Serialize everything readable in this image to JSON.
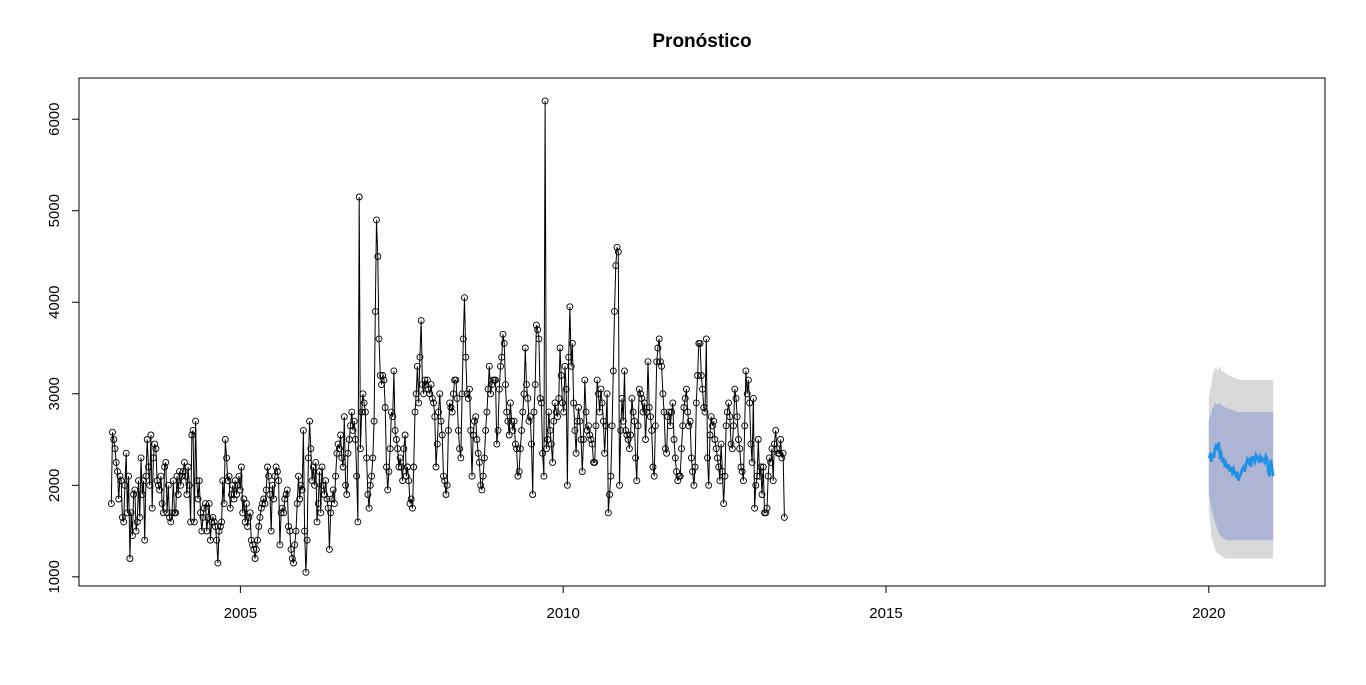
{
  "chart_data": {
    "type": "line",
    "title": "Pronóstico",
    "xlabel": "",
    "ylabel": "",
    "xlim": [
      2002.5,
      2021.8
    ],
    "ylim": [
      900,
      6450
    ],
    "x_ticks": [
      2005,
      2010,
      2015,
      2020
    ],
    "y_ticks": [
      1000,
      2000,
      3000,
      4000,
      5000,
      6000
    ],
    "grid": false,
    "legend": "none",
    "colors": {
      "observed": "#000000",
      "forecast": "#1E90E6",
      "interval_95": "#D9D9D9",
      "interval_80": "#AEB4D4"
    },
    "observed": {
      "start": 2003.0,
      "step": 0.0192,
      "values": [
        1800,
        2580,
        2500,
        2400,
        2250,
        2150,
        1850,
        2100,
        2050,
        1650,
        1600,
        2000,
        2350,
        1700,
        2100,
        1200,
        1700,
        1450,
        1900,
        1950,
        1500,
        1600,
        2050,
        1650,
        2300,
        1900,
        2050,
        1400,
        2100,
        2500,
        2200,
        2000,
        2550,
        1750,
        2300,
        2450,
        2400,
        2050,
        2000,
        1950,
        2100,
        1800,
        1700,
        2200,
        2250,
        1700,
        2000,
        1650,
        1600,
        1700,
        2050,
        1700,
        1700,
        2100,
        1900,
        2150,
        2000,
        2100,
        2150,
        2250,
        2100,
        1900,
        2200,
        2000,
        1600,
        2550,
        2600,
        1600,
        2700,
        2050,
        1850,
        2050,
        1700,
        1500,
        1650,
        1750,
        1800,
        1500,
        1650,
        1800,
        1400,
        1600,
        1650,
        1600,
        1550,
        1400,
        1150,
        1500,
        1550,
        1600,
        2050,
        1800,
        2500,
        2300,
        2050,
        2100,
        1750,
        1900,
        2000,
        1850,
        2050,
        1900,
        2000,
        2100,
        1950,
        2200,
        1700,
        1850,
        1600,
        1800,
        1550,
        1650,
        1700,
        1400,
        1350,
        1300,
        1200,
        1300,
        1400,
        1550,
        1650,
        1750,
        1800,
        1850,
        1800,
        1950,
        2200,
        2100,
        1900,
        1500,
        2000,
        1850,
        2100,
        2200,
        2150,
        2050,
        1350,
        1700,
        1750,
        1700,
        1850,
        1900,
        1950,
        1550,
        1500,
        1300,
        1200,
        1150,
        1350,
        1500,
        1800,
        2100,
        1850,
        2000,
        1950,
        2600,
        1500,
        1050,
        1400,
        2300,
        2700,
        2400,
        2050,
        2200,
        2000,
        2250,
        1600,
        1800,
        2150,
        1700,
        2200,
        2000,
        1900,
        2050,
        1850,
        1750,
        1300,
        1700,
        1850,
        1950,
        1800,
        2100,
        2350,
        2450,
        2400,
        2550,
        2300,
        2200,
        2750,
        2000,
        1900,
        2350,
        2500,
        2650,
        2800,
        2600,
        2700,
        2500,
        2100,
        1600,
        5150,
        2400,
        2800,
        3000,
        2900,
        2800,
        2300,
        1900,
        1750,
        2000,
        2100,
        2300,
        2700,
        3900,
        4900,
        4500,
        3600,
        3200,
        3100,
        3200,
        3150,
        2850,
        2200,
        1950,
        2150,
        2400,
        2800,
        2750,
        3250,
        2600,
        2500,
        2400,
        2200,
        2300,
        2200,
        2050,
        2400,
        2550,
        2100,
        2200,
        2050,
        1800,
        1850,
        1750,
        2200,
        2800,
        3000,
        3300,
        2900,
        3400,
        3800,
        3100,
        3000,
        3150,
        3100,
        3150,
        3050,
        3000,
        3100,
        2950,
        2900,
        2750,
        2200,
        2450,
        2800,
        3000,
        2700,
        2550,
        2100,
        2050,
        1900,
        2000,
        2600,
        2900,
        2850,
        2800,
        3000,
        3150,
        3150,
        2950,
        2600,
        2400,
        2300,
        3000,
        3600,
        4050,
        3400,
        3000,
        2950,
        3050,
        2600,
        2100,
        2550,
        2700,
        2750,
        2500,
        2350,
        2250,
        2000,
        1950,
        2100,
        2300,
        2600,
        2800,
        3050,
        3300,
        3000,
        3100,
        3150,
        3150,
        3150,
        2450,
        2600,
        3050,
        3300,
        3400,
        3650,
        3550,
        3100,
        2800,
        2700,
        2550,
        2900,
        2700,
        2600,
        2700,
        2450,
        2400,
        2100,
        2150,
        2400,
        2600,
        2800,
        3000,
        3500,
        3100,
        2950,
        2700,
        2750,
        2450,
        1900,
        2800,
        3100,
        3750,
        3700,
        3600,
        2950,
        2900,
        2350,
        2100,
        6200,
        2400,
        2500,
        2800,
        2600,
        2450,
        2250,
        2700,
        2900,
        2800,
        2750,
        2950,
        3500,
        3200,
        2900,
        2800,
        3300,
        3050,
        2000,
        3400,
        3950,
        3300,
        3550,
        2900,
        2600,
        2350,
        2700,
        2850,
        2700,
        2500,
        2150,
        2500,
        3150,
        2800,
        2600,
        2650,
        2550,
        2500,
        2450,
        2250,
        2250,
        2650,
        3150,
        3000,
        2800,
        3050,
        2900,
        2700,
        2350,
        2650,
        3000,
        1700,
        1900,
        2100,
        2650,
        3250,
        3900,
        4400,
        4600,
        4550,
        2000,
        2600,
        2950,
        2700,
        3250,
        2600,
        2550,
        2500,
        2400,
        2550,
        2950,
        2800,
        2700,
        2300,
        2050,
        2650,
        3050,
        3000,
        2950,
        2800,
        2900,
        2500,
        2800,
        3350,
        2850,
        2750,
        2600,
        2200,
        2100,
        2650,
        3350,
        3500,
        3600,
        3350,
        3300,
        3000,
        2800,
        2400,
        2350,
        2750,
        2800,
        2650,
        2800,
        2900,
        2500,
        2300,
        2150,
        2050,
        2100,
        2100,
        2400,
        2650,
        2850,
        2950,
        3050,
        2800,
        2650,
        2700,
        2300,
        2150,
        2000,
        2200,
        2900,
        3200,
        3550,
        3550,
        3200,
        3050,
        2850,
        2800,
        3600,
        2300,
        2000,
        2550,
        2750,
        2650,
        2700,
        2500,
        2400,
        2300,
        2200,
        2050,
        2450,
        2150,
        1800,
        2100,
        2650,
        2800,
        2900,
        2750,
        2450,
        2400,
        2650,
        3050,
        2950,
        2750,
        2500,
        2400,
        2200,
        2150,
        2050,
        2650,
        3250,
        3000,
        3150,
        2900,
        2450,
        2250,
        2950,
        1750,
        2000,
        2100,
        2500,
        2100,
        2200,
        1900,
        2200,
        1700,
        1700,
        1750,
        2100,
        2300,
        2250,
        2400,
        2050,
        2450,
        2600,
        2400,
        2350,
        2350,
        2500,
        2300,
        2350,
        1650
      ]
    },
    "forecast": {
      "start": 2020.0,
      "step": 0.0192,
      "values": [
        2300,
        2330,
        2260,
        2350,
        2300,
        2400,
        2450,
        2380,
        2470,
        2320,
        2350,
        2250,
        2300,
        2200,
        2240,
        2180,
        2230,
        2150,
        2200,
        2140,
        2180,
        2120,
        2100,
        2150,
        2050,
        2100,
        2130,
        2180,
        2200,
        2150,
        2220,
        2280,
        2250,
        2300,
        2200,
        2320,
        2280,
        2250,
        2330,
        2300,
        2270,
        2310,
        2250,
        2300,
        2280,
        2250,
        2320,
        2290,
        2150,
        2100,
        2280,
        2200,
        2100
      ],
      "lo80": [
        1900,
        1850,
        1750,
        1700,
        1650,
        1600,
        1560,
        1520,
        1480,
        1460,
        1440,
        1430,
        1420,
        1410,
        1400,
        1400,
        1400,
        1400,
        1400,
        1400,
        1400,
        1400,
        1400,
        1400,
        1400,
        1400,
        1400,
        1400,
        1400,
        1400,
        1400,
        1400,
        1400,
        1400,
        1400,
        1400,
        1400,
        1400,
        1400,
        1400,
        1400,
        1400,
        1400,
        1400,
        1400,
        1400,
        1400,
        1400,
        1400,
        1400,
        1400,
        1400,
        1400
      ],
      "hi80": [
        2700,
        2760,
        2780,
        2860,
        2850,
        2900,
        2900,
        2880,
        2890,
        2900,
        2880,
        2870,
        2860,
        2850,
        2850,
        2840,
        2840,
        2830,
        2830,
        2820,
        2820,
        2810,
        2810,
        2800,
        2800,
        2800,
        2800,
        2800,
        2800,
        2800,
        2800,
        2800,
        2800,
        2800,
        2800,
        2800,
        2800,
        2800,
        2800,
        2800,
        2800,
        2800,
        2800,
        2800,
        2800,
        2800,
        2800,
        2800,
        2800,
        2800,
        2800,
        2800,
        2800
      ],
      "lo95": [
        1750,
        1600,
        1450,
        1400,
        1350,
        1300,
        1280,
        1260,
        1250,
        1240,
        1230,
        1220,
        1210,
        1200,
        1200,
        1200,
        1200,
        1200,
        1200,
        1200,
        1200,
        1200,
        1200,
        1200,
        1200,
        1200,
        1200,
        1200,
        1200,
        1200,
        1200,
        1200,
        1200,
        1200,
        1200,
        1200,
        1200,
        1200,
        1200,
        1200,
        1200,
        1200,
        1200,
        1200,
        1200,
        1200,
        1200,
        1200,
        1200,
        1200,
        1200,
        1200,
        1200
      ],
      "hi95": [
        2950,
        3050,
        3100,
        3200,
        3250,
        3280,
        3300,
        3250,
        3280,
        3300,
        3260,
        3240,
        3250,
        3230,
        3220,
        3200,
        3210,
        3190,
        3200,
        3180,
        3180,
        3170,
        3170,
        3160,
        3160,
        3150,
        3150,
        3150,
        3150,
        3150,
        3150,
        3150,
        3150,
        3150,
        3150,
        3150,
        3150,
        3150,
        3150,
        3150,
        3150,
        3150,
        3150,
        3150,
        3150,
        3150,
        3150,
        3150,
        3150,
        3150,
        3150,
        3150,
        3150
      ]
    }
  }
}
